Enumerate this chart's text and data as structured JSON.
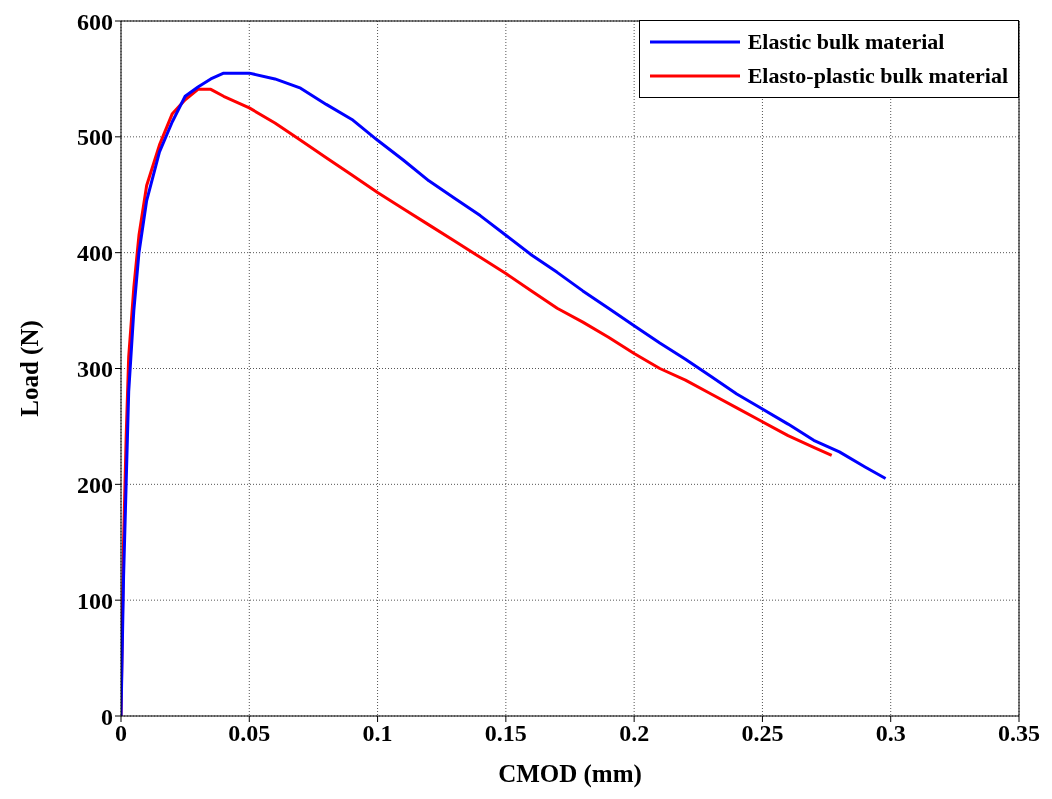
{
  "chart_data": {
    "type": "line",
    "xlabel": "CMOD (mm)",
    "ylabel": "Load (N)",
    "xlim": [
      0,
      0.35
    ],
    "xticks": [
      0,
      0.05,
      0.1,
      0.15,
      0.2,
      0.25,
      0.3,
      0.35
    ],
    "ylim": [
      0,
      600
    ],
    "yticks": [
      0,
      100,
      200,
      300,
      400,
      500,
      600
    ],
    "grid": true,
    "legend": "top right",
    "marker": "none",
    "line_style": "solid",
    "series": [
      {
        "name": "Elastic bulk material",
        "color": "#0000ff",
        "x": [
          0,
          0.001,
          0.002,
          0.003,
          0.005,
          0.007,
          0.01,
          0.015,
          0.02,
          0.025,
          0.03,
          0.035,
          0.04,
          0.05,
          0.06,
          0.07,
          0.08,
          0.09,
          0.1,
          0.11,
          0.12,
          0.13,
          0.14,
          0.15,
          0.16,
          0.17,
          0.18,
          0.19,
          0.2,
          0.21,
          0.22,
          0.23,
          0.24,
          0.25,
          0.26,
          0.27,
          0.28,
          0.29,
          0.298
        ],
        "values": [
          0,
          120,
          200,
          280,
          350,
          400,
          445,
          487,
          513,
          535,
          543,
          550,
          555,
          555,
          550,
          542,
          528,
          515,
          497,
          480,
          462,
          447,
          432,
          415,
          398,
          383,
          367,
          352,
          337,
          322,
          308,
          293,
          278,
          265,
          252,
          238,
          228,
          215,
          205
        ]
      },
      {
        "name": "Elasto-plastic bulk material",
        "color": "#ff0000",
        "x": [
          0,
          0.001,
          0.002,
          0.003,
          0.005,
          0.007,
          0.01,
          0.015,
          0.02,
          0.025,
          0.03,
          0.035,
          0.04,
          0.05,
          0.06,
          0.07,
          0.08,
          0.09,
          0.1,
          0.11,
          0.12,
          0.13,
          0.14,
          0.15,
          0.16,
          0.17,
          0.18,
          0.19,
          0.2,
          0.21,
          0.22,
          0.23,
          0.24,
          0.25,
          0.26,
          0.27,
          0.277
        ],
        "values": [
          0,
          150,
          240,
          310,
          370,
          415,
          458,
          493,
          520,
          532,
          541,
          541,
          535,
          525,
          512,
          497,
          482,
          467,
          452,
          438,
          424,
          410,
          396,
          382,
          367,
          352,
          340,
          327,
          313,
          300,
          290,
          278,
          266,
          254,
          242,
          232,
          225
        ]
      }
    ]
  }
}
